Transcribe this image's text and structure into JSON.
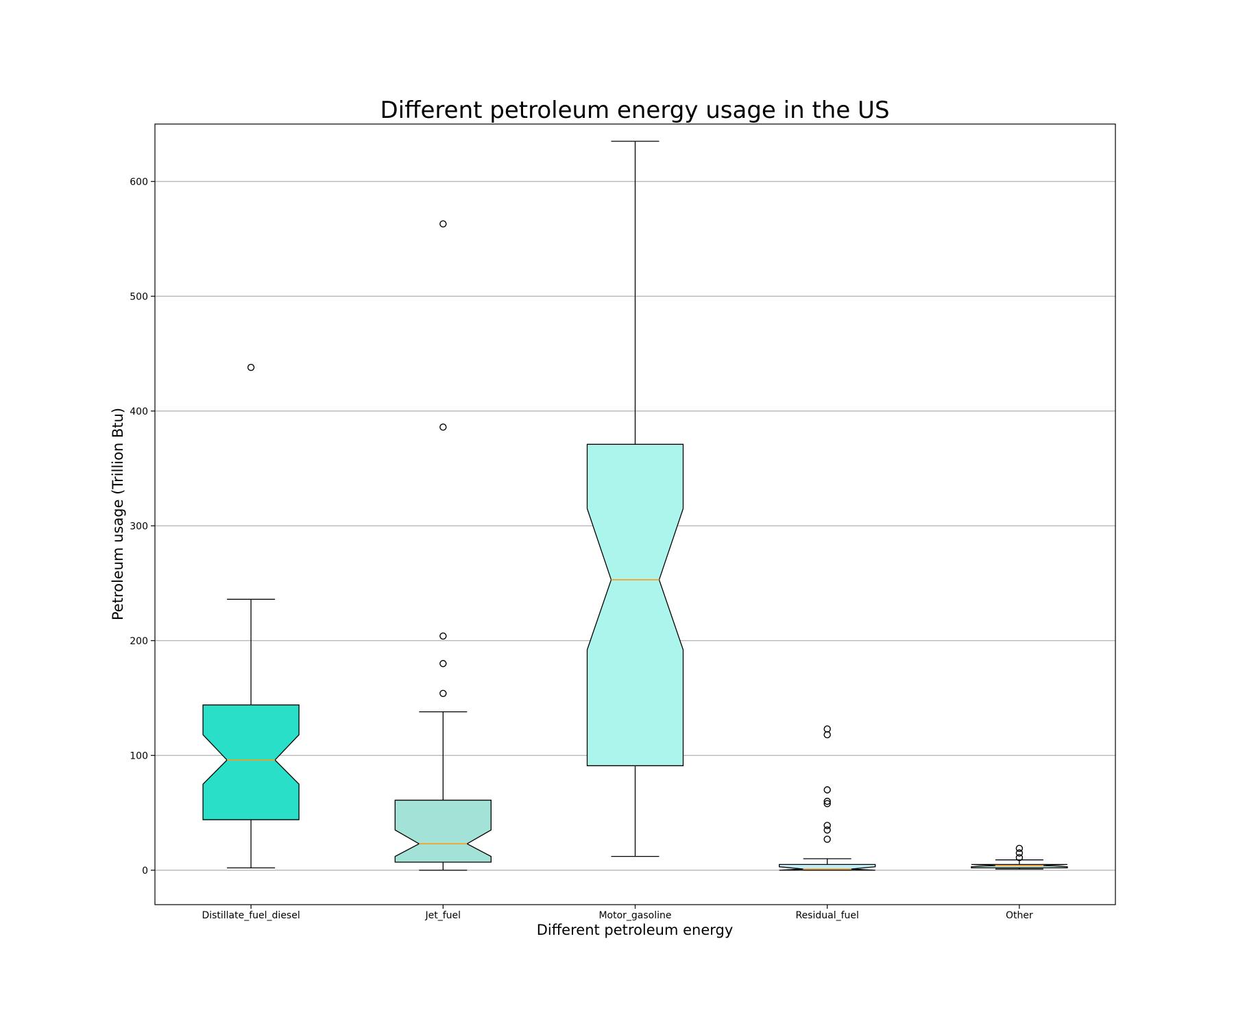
{
  "chart_data": {
    "type": "boxplot",
    "title": "Different petroleum energy usage in the US",
    "xlabel": "Different petroleum energy",
    "ylabel": "Petroleum usage (Trillion Btu)",
    "ylim": [
      -30,
      650
    ],
    "yticks": [
      0,
      100,
      200,
      300,
      400,
      500,
      600
    ],
    "grid": "horizontal",
    "notched": true,
    "median_color": "#ff9a1a",
    "categories": [
      "Distillate_fuel_diesel",
      "Jet_fuel",
      "Motor_gasoline",
      "Residual_fuel",
      "Other"
    ],
    "series": [
      {
        "category": "Distillate_fuel_diesel",
        "color": "#2adfc8",
        "whisker_low": 2,
        "q1": 44,
        "median": 96,
        "q3": 144,
        "whisker_high": 236,
        "notch_low": 75,
        "notch_high": 118,
        "outliers": [
          438
        ]
      },
      {
        "category": "Jet_fuel",
        "color": "#a3e2d6",
        "whisker_low": 0,
        "q1": 7,
        "median": 23,
        "q3": 61,
        "whisker_high": 138,
        "notch_low": 12,
        "notch_high": 35,
        "outliers": [
          154,
          180,
          204,
          386,
          563
        ]
      },
      {
        "category": "Motor_gasoline",
        "color": "#acf5ec",
        "whisker_low": 12,
        "q1": 91,
        "median": 253,
        "q3": 371,
        "whisker_high": 635,
        "notch_low": 192,
        "notch_high": 315,
        "outliers": []
      },
      {
        "category": "Residual_fuel",
        "color": "#bfeef6",
        "whisker_low": 0,
        "q1": 0,
        "median": 1,
        "q3": 5,
        "whisker_high": 10,
        "notch_low": 0,
        "notch_high": 3,
        "outliers": [
          27,
          35,
          39,
          58,
          60,
          70,
          118,
          123
        ]
      },
      {
        "category": "Other",
        "color": "#b3e8df",
        "whisker_low": 1,
        "q1": 2,
        "median": 4,
        "q3": 5,
        "whisker_high": 9,
        "notch_low": 3,
        "notch_high": 5,
        "outliers": [
          11,
          15,
          19
        ]
      }
    ]
  }
}
